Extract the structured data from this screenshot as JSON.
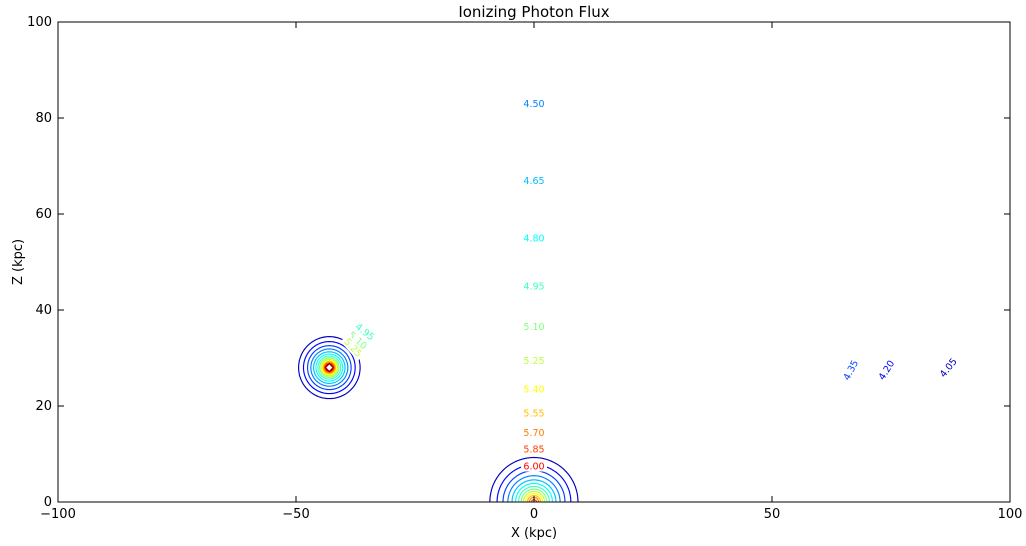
{
  "chart_data": {
    "type": "contour",
    "title": "Ionizing Photon Flux",
    "xlabel": "X (kpc)",
    "ylabel": "Z (kpc)",
    "xlim": [
      -100,
      100
    ],
    "ylim": [
      0,
      100
    ],
    "x_ticks": [
      -100,
      -50,
      0,
      50,
      100
    ],
    "y_ticks": [
      0,
      20,
      40,
      60,
      80,
      100
    ],
    "x_tick_labels": [
      "−100",
      "−50",
      "0",
      "50",
      "100"
    ],
    "y_tick_labels": [
      "0",
      "20",
      "40",
      "60",
      "80",
      "100"
    ],
    "grid": false,
    "colormap": "jet",
    "level_step": 0.15,
    "color_range": [
      3.9,
      6.3
    ],
    "sources": [
      {
        "x": 0,
        "z": 0,
        "kind": "disk"
      },
      {
        "x": -43,
        "z": 28,
        "kind": "point"
      }
    ],
    "contour_labels": [
      {
        "text": "4.50",
        "level": 4.5,
        "x": 0,
        "z": 83
      },
      {
        "text": "4.65",
        "level": 4.65,
        "x": 0,
        "z": 67
      },
      {
        "text": "4.80",
        "level": 4.8,
        "x": 0,
        "z": 55
      },
      {
        "text": "4.95",
        "level": 4.95,
        "x": 0,
        "z": 45
      },
      {
        "text": "5.10",
        "level": 5.1,
        "x": 0,
        "z": 36.5
      },
      {
        "text": "5.25",
        "level": 5.25,
        "x": 0,
        "z": 29.5
      },
      {
        "text": "5.40",
        "level": 5.4,
        "x": 0,
        "z": 23.5
      },
      {
        "text": "5.55",
        "level": 5.55,
        "x": 0,
        "z": 18.5
      },
      {
        "text": "5.70",
        "level": 5.7,
        "x": 0,
        "z": 14.5
      },
      {
        "text": "5.85",
        "level": 5.85,
        "x": 0,
        "z": 11
      },
      {
        "text": "6.00",
        "level": 6.0,
        "x": 0,
        "z": 7.5
      },
      {
        "text": "4.35",
        "level": 4.35,
        "x": 66.5,
        "z": 27.5,
        "angle": -62
      },
      {
        "text": "4.20",
        "level": 4.2,
        "x": 74,
        "z": 27.5,
        "angle": -58
      },
      {
        "text": "4.05",
        "level": 4.05,
        "x": 87,
        "z": 28,
        "angle": -52
      },
      {
        "text": "4.95",
        "level": 4.95,
        "x": -35.5,
        "z": 35.5,
        "angle": 38
      },
      {
        "text": "5.10",
        "level": 5.1,
        "x": -37,
        "z": 33.7,
        "angle": 42
      },
      {
        "text": "5.25",
        "level": 5.25,
        "x": -38,
        "z": 32.2,
        "angle": 48
      }
    ]
  }
}
